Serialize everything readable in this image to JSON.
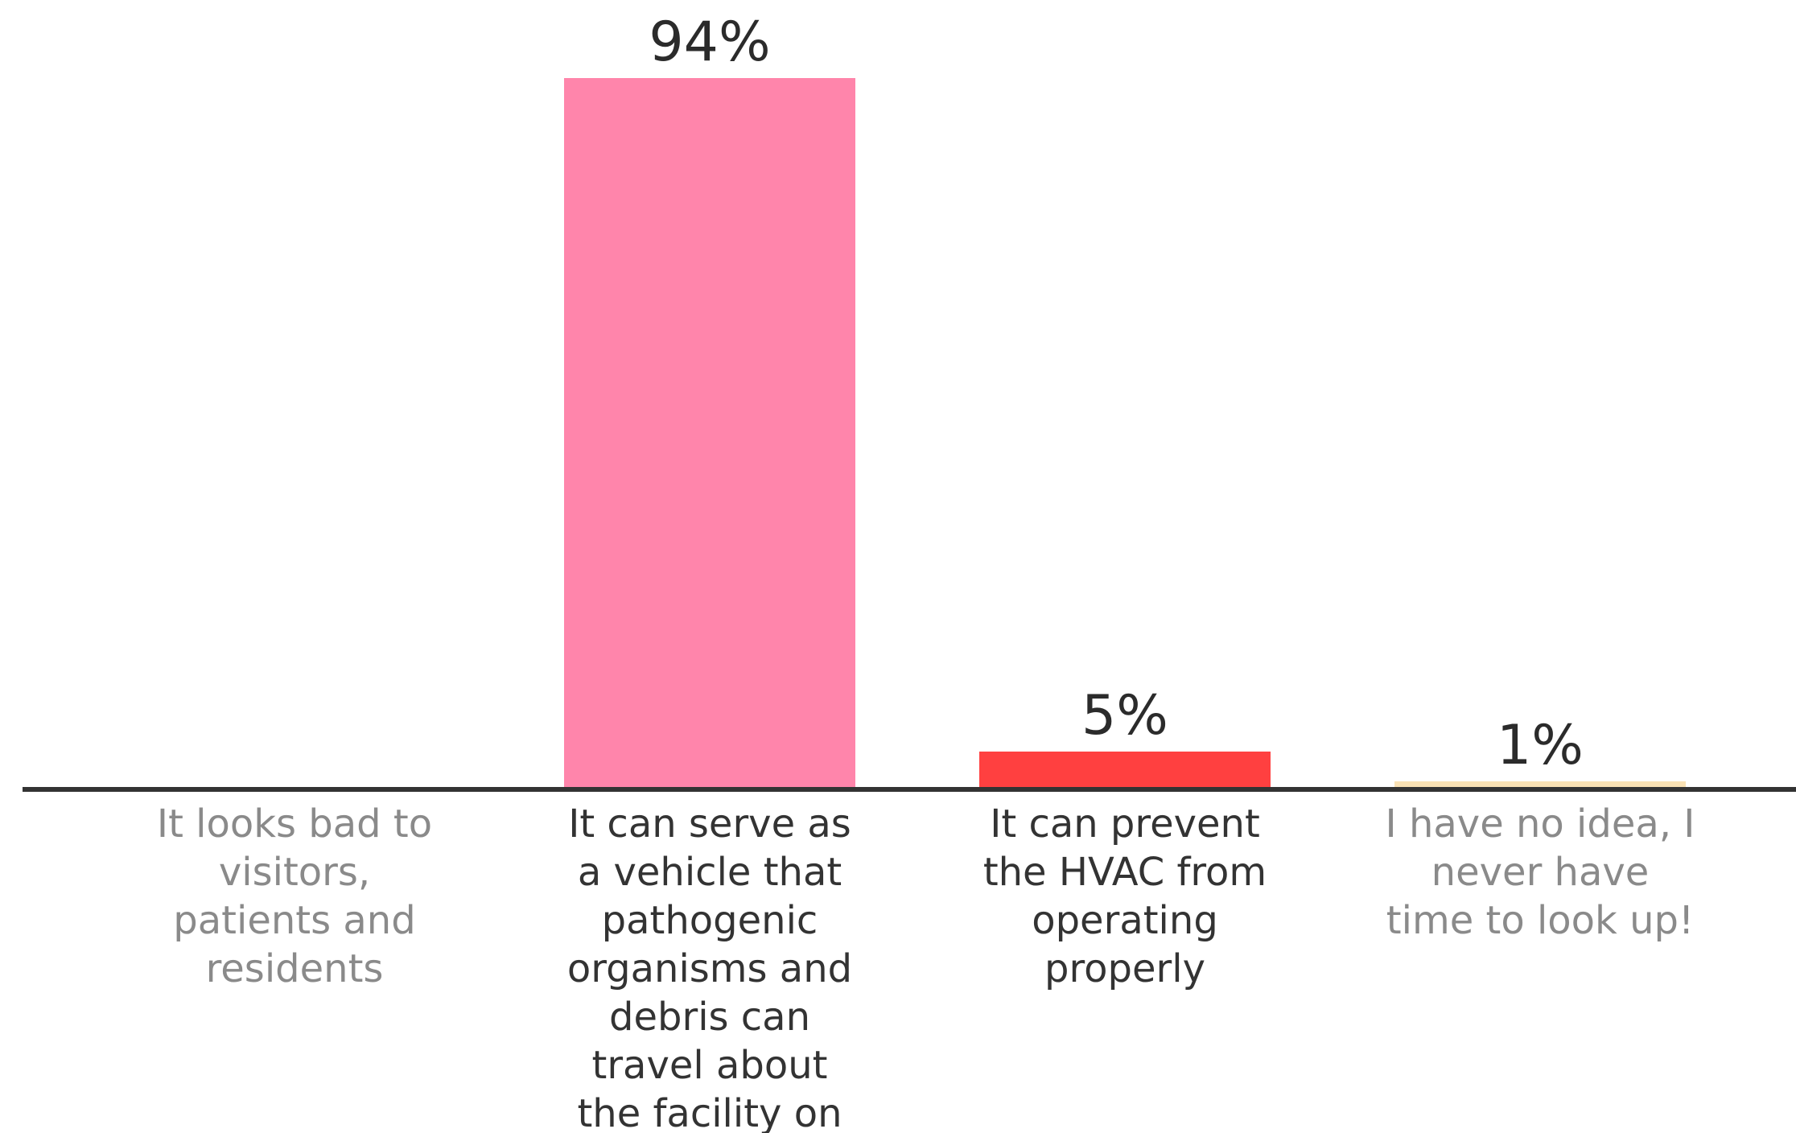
{
  "chart_data": {
    "type": "bar",
    "title": "",
    "xlabel": "",
    "ylabel": "",
    "ylim": [
      0,
      100
    ],
    "grid": false,
    "legend": "none",
    "categories": [
      "It looks bad to visitors, patients and residents",
      "It can serve as a vehicle that pathogenic organisms and debris can travel about the facility on",
      "It can prevent the HVAC from operating properly",
      "I have no idea, I never have time to look up!"
    ],
    "category_lines": [
      [
        "It looks bad to",
        "visitors,",
        "patients and",
        "residents"
      ],
      [
        "It can serve as",
        "a vehicle that",
        "pathogenic",
        "organisms and",
        "debris can",
        "travel about",
        "the facility on"
      ],
      [
        "It can prevent",
        "the HVAC from",
        "operating",
        "properly"
      ],
      [
        "I have no idea, I",
        "never have",
        "time to look up!"
      ]
    ],
    "values": [
      0,
      94,
      5,
      1
    ],
    "value_labels": [
      "",
      "94%",
      "5%",
      "1%"
    ],
    "colors": [
      "#ff85ab",
      "#ff85ab",
      "#ff4040",
      "#f9e1b4"
    ],
    "label_colors": [
      "#8a8a8a",
      "#333333",
      "#333333",
      "#8a8a8a"
    ],
    "axis_color": "#333333"
  }
}
